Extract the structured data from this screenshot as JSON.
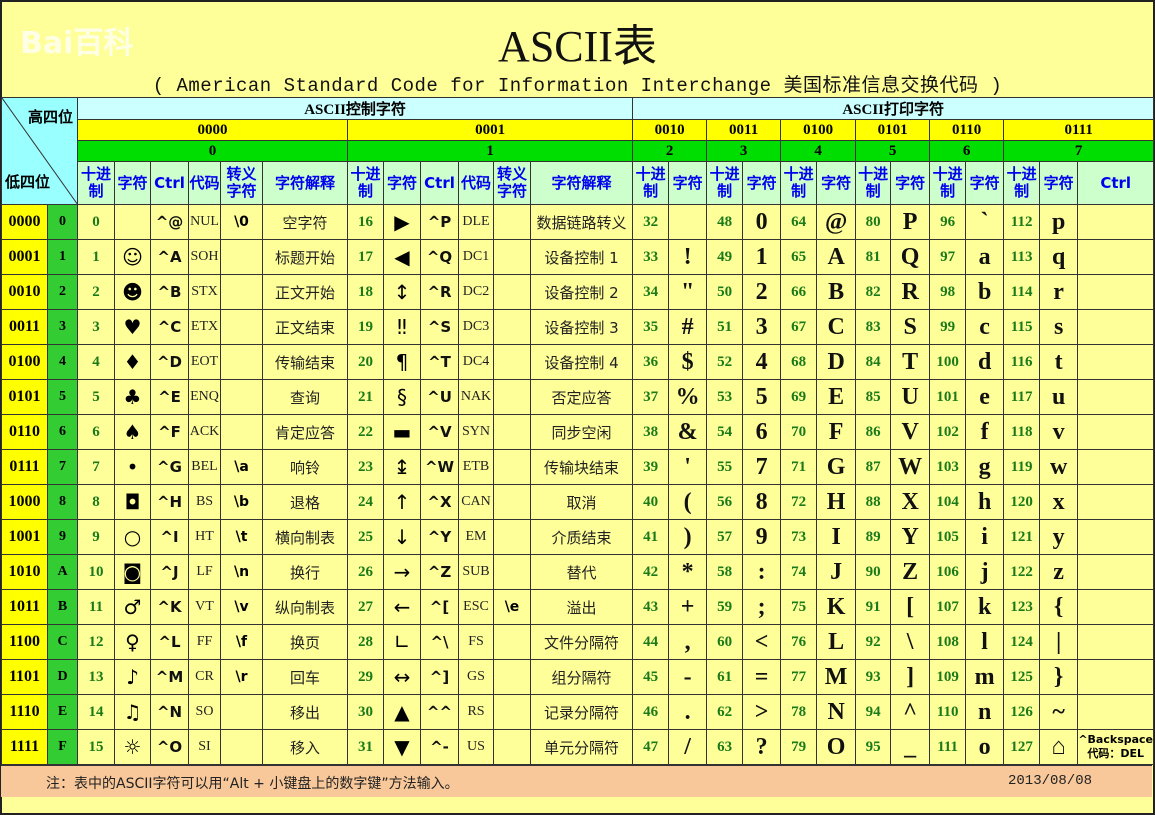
{
  "title": "ASCII表",
  "subtitle": "( American Standard Code for Information Interchange  美国标准信息交换代码 )",
  "corner": {
    "high": "高四位",
    "low": "低四位"
  },
  "groups": {
    "control": "ASCII控制字符",
    "printable": "ASCII打印字符"
  },
  "high_bits": [
    {
      "bin": "0000",
      "hex": "0"
    },
    {
      "bin": "0001",
      "hex": "1"
    },
    {
      "bin": "0010",
      "hex": "2"
    },
    {
      "bin": "0011",
      "hex": "3"
    },
    {
      "bin": "0100",
      "hex": "4"
    },
    {
      "bin": "0101",
      "hex": "5"
    },
    {
      "bin": "0110",
      "hex": "6"
    },
    {
      "bin": "0111",
      "hex": "7"
    }
  ],
  "col_headers": {
    "dec": "十进制",
    "char": "字符",
    "ctrl": "Ctrl",
    "code": "代码",
    "escape": "转义字符",
    "desc": "字符解释"
  },
  "rows": [
    [
      "0000",
      "0",
      "0",
      "",
      "^@",
      "NUL",
      "\\0",
      "空字符",
      "16",
      "▶",
      "^P",
      "DLE",
      "",
      "数据链路转义",
      "32",
      "",
      "48",
      "0",
      "64",
      "@",
      "80",
      "P",
      "96",
      "`",
      "112",
      "p",
      ""
    ],
    [
      "0001",
      "1",
      "1",
      "☺",
      "^A",
      "SOH",
      "",
      "标题开始",
      "17",
      "◀",
      "^Q",
      "DC1",
      "",
      "设备控制 1",
      "33",
      "!",
      "49",
      "1",
      "65",
      "A",
      "81",
      "Q",
      "97",
      "a",
      "113",
      "q",
      ""
    ],
    [
      "0010",
      "2",
      "2",
      "☻",
      "^B",
      "STX",
      "",
      "正文开始",
      "18",
      "↕",
      "^R",
      "DC2",
      "",
      "设备控制 2",
      "34",
      "\"",
      "50",
      "2",
      "66",
      "B",
      "82",
      "R",
      "98",
      "b",
      "114",
      "r",
      ""
    ],
    [
      "0011",
      "3",
      "3",
      "♥",
      "^C",
      "ETX",
      "",
      "正文结束",
      "19",
      "‼",
      "^S",
      "DC3",
      "",
      "设备控制 3",
      "35",
      "#",
      "51",
      "3",
      "67",
      "C",
      "83",
      "S",
      "99",
      "c",
      "115",
      "s",
      ""
    ],
    [
      "0100",
      "4",
      "4",
      "♦",
      "^D",
      "EOT",
      "",
      "传输结束",
      "20",
      "¶",
      "^T",
      "DC4",
      "",
      "设备控制 4",
      "36",
      "$",
      "52",
      "4",
      "68",
      "D",
      "84",
      "T",
      "100",
      "d",
      "116",
      "t",
      ""
    ],
    [
      "0101",
      "5",
      "5",
      "♣",
      "^E",
      "ENQ",
      "",
      "查询",
      "21",
      "§",
      "^U",
      "NAK",
      "",
      "否定应答",
      "37",
      "%",
      "53",
      "5",
      "69",
      "E",
      "85",
      "U",
      "101",
      "e",
      "117",
      "u",
      ""
    ],
    [
      "0110",
      "6",
      "6",
      "♠",
      "^F",
      "ACK",
      "",
      "肯定应答",
      "22",
      "▬",
      "^V",
      "SYN",
      "",
      "同步空闲",
      "38",
      "&",
      "54",
      "6",
      "70",
      "F",
      "86",
      "V",
      "102",
      "f",
      "118",
      "v",
      ""
    ],
    [
      "0111",
      "7",
      "7",
      "•",
      "^G",
      "BEL",
      "\\a",
      "响铃",
      "23",
      "↨",
      "^W",
      "ETB",
      "",
      "传输块结束",
      "39",
      "'",
      "55",
      "7",
      "71",
      "G",
      "87",
      "W",
      "103",
      "g",
      "119",
      "w",
      ""
    ],
    [
      "1000",
      "8",
      "8",
      "◘",
      "^H",
      "BS",
      "\\b",
      "退格",
      "24",
      "↑",
      "^X",
      "CAN",
      "",
      "取消",
      "40",
      "(",
      "56",
      "8",
      "72",
      "H",
      "88",
      "X",
      "104",
      "h",
      "120",
      "x",
      ""
    ],
    [
      "1001",
      "9",
      "9",
      "○",
      "^I",
      "HT",
      "\\t",
      "横向制表",
      "25",
      "↓",
      "^Y",
      "EM",
      "",
      "介质结束",
      "41",
      ")",
      "57",
      "9",
      "73",
      "I",
      "89",
      "Y",
      "105",
      "i",
      "121",
      "y",
      ""
    ],
    [
      "1010",
      "A",
      "10",
      "◙",
      "^J",
      "LF",
      "\\n",
      "换行",
      "26",
      "→",
      "^Z",
      "SUB",
      "",
      "替代",
      "42",
      "*",
      "58",
      ":",
      "74",
      "J",
      "90",
      "Z",
      "106",
      "j",
      "122",
      "z",
      ""
    ],
    [
      "1011",
      "B",
      "11",
      "♂",
      "^K",
      "VT",
      "\\v",
      "纵向制表",
      "27",
      "←",
      "^[",
      "ESC",
      "\\e",
      "溢出",
      "43",
      "+",
      "59",
      ";",
      "75",
      "K",
      "91",
      "[",
      "107",
      "k",
      "123",
      "{",
      ""
    ],
    [
      "1100",
      "C",
      "12",
      "♀",
      "^L",
      "FF",
      "\\f",
      "换页",
      "28",
      "∟",
      "^\\",
      "FS",
      "",
      "文件分隔符",
      "44",
      ",",
      "60",
      "<",
      "76",
      "L",
      "92",
      "\\",
      "108",
      "l",
      "124",
      "|",
      ""
    ],
    [
      "1101",
      "D",
      "13",
      "♪",
      "^M",
      "CR",
      "\\r",
      "回车",
      "29",
      "↔",
      "^]",
      "GS",
      "",
      "组分隔符",
      "45",
      "-",
      "61",
      "=",
      "77",
      "M",
      "93",
      "]",
      "109",
      "m",
      "125",
      "}",
      ""
    ],
    [
      "1110",
      "E",
      "14",
      "♫",
      "^N",
      "SO",
      "",
      "移出",
      "30",
      "▲",
      "^^",
      "RS",
      "",
      "记录分隔符",
      "46",
      ".",
      "62",
      ">",
      "78",
      "N",
      "94",
      "^",
      "110",
      "n",
      "126",
      "~",
      ""
    ],
    [
      "1111",
      "F",
      "15",
      "☼",
      "^O",
      "SI",
      "",
      "移入",
      "31",
      "▼",
      "^-",
      "US",
      "",
      "单元分隔符",
      "47",
      "/",
      "63",
      "?",
      "79",
      "O",
      "95",
      "_",
      "111",
      "o",
      "127",
      "⌂",
      "^Backspace 代码：DEL"
    ]
  ],
  "footer": {
    "note": "注：表中的ASCII字符可以用“Alt + 小键盘上的数字键”方法输入。",
    "date": "2013/08/08"
  },
  "watermark": "Bai百科",
  "colors": {
    "background": "#ffff99",
    "binary": "#ffff00",
    "hex": "#00dd00",
    "group_header": "#ccffff",
    "column_header": "#ccffcc",
    "header_text": "#0000ee",
    "decimal_text": "#1a7a1a",
    "footer": "#f8c89a"
  }
}
